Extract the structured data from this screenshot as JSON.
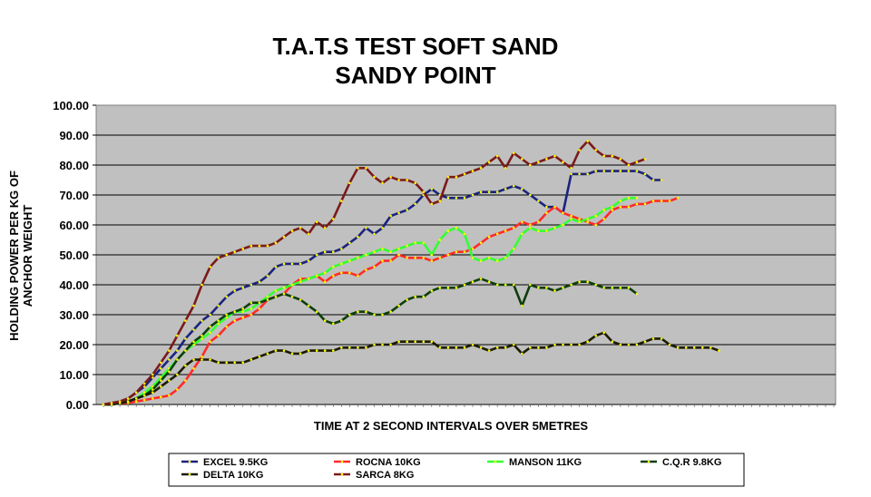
{
  "chart_data": {
    "type": "line",
    "title": [
      "T.A.T.S TEST SOFT SAND",
      "SANDY POINT"
    ],
    "xlabel": "TIME AT 2 SECOND INTERVALS OVER 5METRES",
    "ylabel": [
      "HOLDING POWER PER KG OF",
      "ANCHOR WEIGHT"
    ],
    "ylim": [
      0,
      100
    ],
    "yticks": [
      "0.00",
      "10.00",
      "20.00",
      "30.00",
      "40.00",
      "50.00",
      "60.00",
      "70.00",
      "80.00",
      "90.00",
      "100.00"
    ],
    "grid": true,
    "plot_background": "#c0c0c0",
    "marker_color": "#ffff00",
    "legend_position": "bottom",
    "n_intervals": 89,
    "series": [
      {
        "name": "EXCEL 9.5KG",
        "color": "#1a237e",
        "values": [
          0,
          0.5,
          1,
          2,
          4,
          6,
          9,
          12,
          15,
          18,
          22,
          25,
          28,
          30,
          33,
          36,
          38,
          39,
          40,
          41,
          43,
          46,
          47,
          47,
          47,
          48,
          50,
          51,
          51,
          52,
          54,
          56,
          59,
          57,
          59,
          63,
          64,
          65,
          67,
          70,
          72,
          70,
          69,
          69,
          69,
          70,
          71,
          71,
          71,
          72,
          73,
          72,
          70,
          68,
          66,
          66,
          64,
          77,
          77,
          77,
          78,
          78,
          78,
          78,
          78,
          78,
          77,
          75,
          75
        ]
      },
      {
        "name": "ROCNA 10KG",
        "color": "#ff2a2a",
        "values": [
          0,
          0,
          0.5,
          0.5,
          1,
          1.5,
          2,
          2.5,
          3,
          5,
          8,
          12,
          16,
          21,
          23,
          26,
          28,
          29,
          30,
          32,
          35,
          36,
          37,
          40,
          42,
          42,
          43,
          41,
          43,
          44,
          44,
          43,
          45,
          46,
          48,
          48,
          50,
          49,
          49,
          49,
          48,
          49,
          50,
          51,
          51,
          52,
          54,
          56,
          57,
          58,
          59,
          61,
          60,
          61,
          64,
          66,
          64,
          63,
          62,
          61,
          60,
          62,
          65,
          66,
          66,
          67,
          67,
          68,
          68,
          68,
          69
        ]
      },
      {
        "name": "MANSON 11KG",
        "color": "#33ff33",
        "values": [
          0,
          0,
          0.5,
          1,
          2,
          4,
          6,
          9,
          12,
          15,
          18,
          20,
          22,
          24,
          27,
          29,
          31,
          31,
          32,
          34,
          36,
          38,
          39,
          40,
          41,
          42,
          43,
          44,
          46,
          47,
          48,
          49,
          50,
          51,
          52,
          51,
          52,
          53,
          54,
          54,
          50,
          55,
          58,
          59,
          57,
          49,
          48,
          49,
          48,
          49,
          52,
          57,
          59,
          58,
          58,
          59,
          60,
          62,
          61,
          62,
          63,
          65,
          66,
          68,
          69,
          69
        ]
      },
      {
        "name": "C.Q.R 9.8KG",
        "color": "#0d3d0d",
        "values": [
          0,
          0,
          0.5,
          1,
          2,
          3,
          5,
          8,
          11,
          15,
          18,
          21,
          23,
          26,
          28,
          30,
          31,
          32,
          34,
          34,
          35,
          36,
          37,
          36,
          35,
          33,
          31,
          28,
          27,
          28,
          30,
          31,
          31,
          30,
          30,
          31,
          33,
          35,
          36,
          36,
          38,
          39,
          39,
          39,
          40,
          41,
          42,
          41,
          40,
          40,
          40,
          33,
          40,
          39,
          39,
          38,
          39,
          40,
          41,
          41,
          40,
          39,
          39,
          39,
          39,
          37
        ]
      },
      {
        "name": "DELTA 10KG",
        "color": "#1a1a00",
        "values": [
          0,
          0,
          0.5,
          1,
          2,
          3,
          4,
          6,
          8,
          10,
          13,
          15,
          15,
          15,
          14,
          14,
          14,
          14,
          15,
          16,
          17,
          18,
          18,
          17,
          17,
          18,
          18,
          18,
          18,
          19,
          19,
          19,
          19,
          20,
          20,
          20,
          21,
          21,
          21,
          21,
          21,
          19,
          19,
          19,
          19,
          20,
          19,
          18,
          19,
          19,
          20,
          17,
          19,
          19,
          19,
          20,
          20,
          20,
          20,
          21,
          23,
          24,
          21,
          20,
          20,
          20,
          21,
          22,
          22,
          20,
          19,
          19,
          19,
          19,
          19,
          18
        ]
      },
      {
        "name": "SARCA 8KG",
        "color": "#7b1a1a",
        "values": [
          0,
          0.5,
          1,
          2,
          4,
          7,
          10,
          14,
          18,
          23,
          28,
          33,
          40,
          46,
          49,
          50,
          51,
          52,
          53,
          53,
          53,
          54,
          56,
          58,
          59,
          57,
          61,
          59,
          62,
          68,
          74,
          79,
          79,
          76,
          74,
          76,
          75,
          75,
          74,
          71,
          67,
          68,
          76,
          76,
          77,
          78,
          79,
          81,
          83,
          79,
          84,
          82,
          80,
          81,
          82,
          83,
          81,
          79,
          85,
          88,
          85,
          83,
          83,
          82,
          80,
          81,
          82
        ]
      }
    ]
  }
}
